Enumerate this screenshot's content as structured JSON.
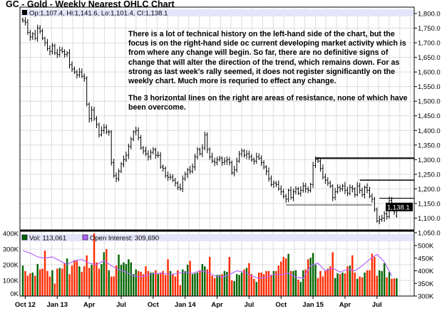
{
  "title": "GC - Gold - Weekly Nearest OHLC Chart",
  "annotation": {
    "paragraph1": "There is a lot of technical history on the left-hand side of the chart, but the focus is on the right-hand side oc current developing market activity which is from where any change will begin.  So far, there are no definitive signs of change that will alter the direction of the trend, which remains down.  For as strong as last week's rally seemed, it does not register significantly on the weekly chart.  Much more is requried to effect any change.",
    "paragraph2": "The 3 horizontal lines on the right are areas of resistance, none of which have been overcome."
  },
  "chart_data": [
    {
      "type": "ohlc",
      "panel": "price",
      "legend": "Op:1,107.4, Hi:1,141.6, Lo:1,101.4, Cl:1,138.1",
      "last_bar": {
        "open": 1107.4,
        "high": 1141.6,
        "low": 1101.4,
        "close": 1138.1
      },
      "last_price_label": "1,138.1",
      "ylim": [
        1050,
        1800
      ],
      "yticks": [
        "1,800.0",
        "1,750.0",
        "1,700.0",
        "1,650.0",
        "1,600.0",
        "1,550.0",
        "1,500.0",
        "1,450.0",
        "1,400.0",
        "1,350.0",
        "1,300.0",
        "1,250.0",
        "1,200.0",
        "1,150.0",
        "1,100.0",
        "1,050.0"
      ],
      "weekly_close": [
        1775,
        1770,
        1735,
        1720,
        1730,
        1715,
        1750,
        1740,
        1715,
        1700,
        1680,
        1670,
        1690,
        1665,
        1660,
        1675,
        1670,
        1660,
        1665,
        1625,
        1610,
        1600,
        1590,
        1600,
        1585,
        1578,
        1490,
        1440,
        1470,
        1440,
        1420,
        1385,
        1400,
        1410,
        1395,
        1395,
        1290,
        1245,
        1235,
        1260,
        1285,
        1300,
        1315,
        1345,
        1370,
        1395,
        1400,
        1375,
        1340,
        1330,
        1320,
        1310,
        1325,
        1335,
        1315,
        1315,
        1275,
        1270,
        1245,
        1240,
        1240,
        1230,
        1220,
        1205,
        1200,
        1235,
        1250,
        1265,
        1260,
        1275,
        1310,
        1335,
        1320,
        1340,
        1385,
        1335,
        1310,
        1295,
        1290,
        1300,
        1305,
        1290,
        1295,
        1300,
        1290,
        1255,
        1265,
        1295,
        1320,
        1330,
        1315,
        1320,
        1310,
        1300,
        1295,
        1310,
        1305,
        1290,
        1275,
        1260,
        1235,
        1215,
        1220,
        1215,
        1200,
        1190,
        1175,
        1165,
        1195,
        1170,
        1190,
        1200,
        1185,
        1195,
        1210,
        1200,
        1195,
        1215,
        1280,
        1300,
        1295,
        1270,
        1240,
        1230,
        1220,
        1210,
        1170,
        1190,
        1205,
        1200,
        1210,
        1195,
        1185,
        1205,
        1200,
        1180,
        1210,
        1195,
        1180,
        1205,
        1195,
        1175,
        1165,
        1130,
        1090,
        1095,
        1100,
        1115,
        1105,
        1160,
        1135,
        1120,
        1138.1
      ],
      "resistance_levels": [
        1305,
        1230,
        1168
      ],
      "support_level": 1145,
      "grid": true
    },
    {
      "type": "bar+line",
      "panel": "volume",
      "legend_volume": "Vol: 113,061",
      "legend_oi": "Open Interest: 309,690",
      "volume_yticks": [
        "400K",
        "300K",
        "200K",
        "100K",
        "0K"
      ],
      "oi_yticks": [
        "500K",
        "450K",
        "400K",
        "350K",
        "300K"
      ],
      "volume_ylim_k": [
        0,
        400
      ],
      "oi_ylim_k": [
        300,
        500
      ],
      "volume_k": [
        195,
        160,
        130,
        145,
        150,
        130,
        205,
        170,
        175,
        290,
        160,
        125,
        165,
        80,
        175,
        180,
        175,
        210,
        240,
        140,
        195,
        230,
        225,
        190,
        155,
        190,
        260,
        180,
        200,
        400,
        215,
        175,
        205,
        280,
        300,
        165,
        125,
        125,
        195,
        265,
        200,
        215,
        205,
        235,
        215,
        140,
        170,
        160,
        155,
        140,
        190,
        160,
        150,
        150,
        165,
        140,
        150,
        160,
        135,
        235,
        160,
        140,
        125,
        165,
        70,
        170,
        160,
        200,
        225,
        140,
        145,
        150,
        165,
        205,
        190,
        170,
        250,
        130,
        115,
        135,
        135,
        140,
        160,
        155,
        250,
        100,
        95,
        140,
        135,
        150,
        170,
        180,
        210,
        140,
        110,
        90,
        150,
        150,
        140,
        160,
        160,
        135,
        160,
        160,
        195,
        220,
        250,
        240,
        270,
        160,
        160,
        165,
        105,
        90,
        165,
        170,
        235,
        245,
        275,
        200,
        115,
        160,
        125,
        165,
        175,
        190,
        280,
        115,
        145,
        140,
        150,
        145,
        190,
        195,
        260,
        150,
        110,
        125,
        120,
        150,
        165,
        165,
        270,
        250,
        130,
        165,
        160,
        210,
        120,
        155,
        110,
        113,
        113.061
      ],
      "open_interest_k_every_3_weeks": [
        480,
        470,
        455,
        450,
        455,
        440,
        425,
        440,
        445,
        430,
        425,
        440,
        420,
        405,
        395,
        380,
        375,
        385,
        390,
        390,
        385,
        390,
        395,
        390,
        400,
        395,
        380,
        375,
        385,
        400,
        395,
        380,
        370,
        375,
        385,
        385,
        390,
        375,
        370,
        420,
        430,
        400,
        410,
        395,
        405,
        400,
        420,
        445,
        465,
        435,
        380
      ],
      "colors": {
        "up": "#006400",
        "down": "#ff2a00",
        "open_interest": "#b266ff",
        "legend_band": "#e4e4fa"
      },
      "grid": true
    }
  ],
  "xaxis": {
    "ticks": [
      "Oct 12",
      "Jan 13",
      "Apr",
      "Jul",
      "Oct",
      "Jan 14",
      "Apr",
      "Jul",
      "Oct",
      "Jan 15",
      "Apr",
      "Jul"
    ]
  }
}
